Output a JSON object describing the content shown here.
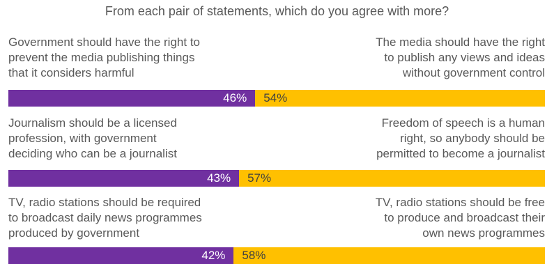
{
  "title": "From each pair of statements, which do you agree with more?",
  "colors": {
    "left_series": "#7030a0",
    "right_series": "#ffc000"
  },
  "chart_data": {
    "type": "bar",
    "orientation": "horizontal",
    "stacked": true,
    "title": "From each pair of statements, which do you agree with more?",
    "xlim": [
      0,
      100
    ],
    "grid": false,
    "legend": "none",
    "rows": [
      {
        "left_statement": "Government should have the right to\nprevent the media publishing things\nthat it considers harmful",
        "right_statement": "The media should have the right\nto publish any views and ideas\nwithout government control",
        "left_value": 46,
        "right_value": 54,
        "left_label": "46%",
        "right_label": "54%"
      },
      {
        "left_statement": "Journalism should be a licensed\nprofession, with government\ndeciding who can be a journalist",
        "right_statement": "Freedom of speech is a human\nright, so anybody should be\npermitted to become a journalist",
        "left_value": 43,
        "right_value": 57,
        "left_label": "43%",
        "right_label": "57%"
      },
      {
        "left_statement": "TV, radio stations should be required\nto broadcast daily news programmes\nproduced by government",
        "right_statement": "TV, radio stations should be free\nto produce and broadcast their\nown news programmes",
        "left_value": 42,
        "right_value": 58,
        "left_label": "42%",
        "right_label": "58%"
      }
    ]
  }
}
